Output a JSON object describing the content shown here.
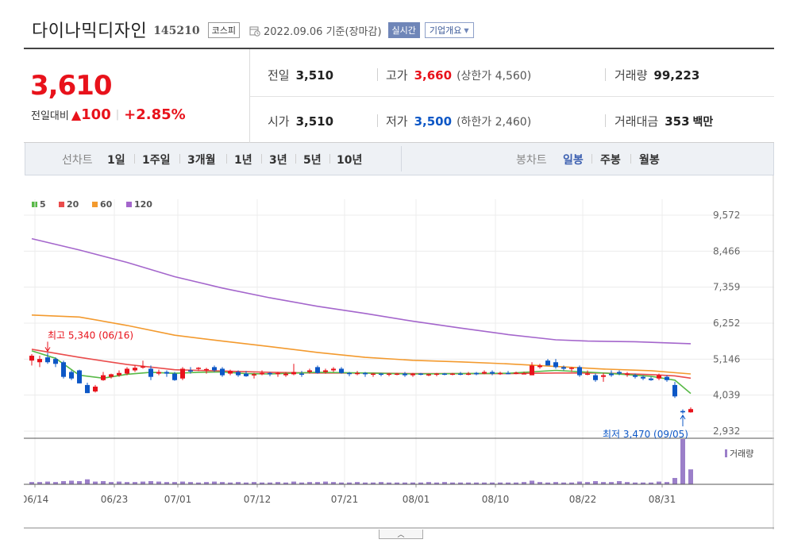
{
  "header": {
    "stock_name": "다이나믹디자인",
    "stock_code": "145210",
    "market": "코스피",
    "date_text": "2022.09.06 기준(장마감)",
    "realtime_label": "실시간",
    "company_label": "기업개요"
  },
  "quote": {
    "price": "3,610",
    "change_label": "전일대비",
    "change_abs": "100",
    "change_pct": "+2.85%",
    "prev_label": "전일",
    "prev_value": "3,510",
    "open_label": "시가",
    "open_value": "3,510",
    "high_label": "고가",
    "high_value": "3,660",
    "upper_limit": "(상한가 4,560)",
    "low_label": "저가",
    "low_value": "3,500",
    "lower_limit": "(하한가 2,460)",
    "volume_label": "거래량",
    "volume_value": "99,223",
    "amount_label": "거래대금",
    "amount_value": "353",
    "amount_unit": "백만"
  },
  "period_bar": {
    "line_label": "선차트",
    "line_options": [
      "1일",
      "1주일",
      "3개월",
      "1년",
      "3년",
      "5년",
      "10년"
    ],
    "candle_label": "봉차트",
    "candle_options": [
      "일봉",
      "주봉",
      "월봉"
    ],
    "candle_active": "일봉"
  },
  "colors": {
    "up": "#e8121b",
    "down": "#0d57c6",
    "ma5": "#58b947",
    "ma20": "#ea4c4c",
    "ma60": "#f39a2e",
    "ma120": "#a466cc",
    "volume": "#9b7fc9"
  },
  "chart_data": {
    "type": "candlestick",
    "ylim": [
      2932,
      9572
    ],
    "y_ticks": [
      "9,572",
      "8,466",
      "7,359",
      "6,252",
      "5,146",
      "4,039",
      "2,932"
    ],
    "x_tick_labels": [
      "06/14",
      "06/23",
      "07/01",
      "07/12",
      "07/21",
      "08/01",
      "08/10",
      "08/22",
      "08/31"
    ],
    "legend": [
      "5",
      "20",
      "60",
      "120"
    ],
    "volume_label": "거래량",
    "annotations": {
      "high_text": "최고 5,340 (06/16)",
      "low_text": "최저 3,470 (09/05)"
    },
    "candles": [
      [
        5100,
        5300,
        4950,
        5250
      ],
      [
        5050,
        5250,
        4900,
        5150
      ],
      [
        5200,
        5340,
        5000,
        5050
      ],
      [
        5150,
        5200,
        4900,
        5000
      ],
      [
        5050,
        5100,
        4550,
        4600
      ],
      [
        4750,
        4800,
        4500,
        4550
      ],
      [
        4800,
        4820,
        4400,
        4400
      ],
      [
        4350,
        4420,
        4100,
        4100
      ],
      [
        4150,
        4350,
        4120,
        4300
      ],
      [
        4500,
        4750,
        4480,
        4650
      ],
      [
        4600,
        4700,
        4550,
        4680
      ],
      [
        4650,
        4800,
        4600,
        4720
      ],
      [
        4700,
        4900,
        4650,
        4850
      ],
      [
        4800,
        4950,
        4750,
        4880
      ],
      [
        4900,
        5100,
        4850,
        4920
      ],
      [
        4850,
        4950,
        4500,
        4600
      ],
      [
        4700,
        4820,
        4650,
        4750
      ],
      [
        4750,
        4800,
        4600,
        4700
      ],
      [
        4700,
        4750,
        4480,
        4500
      ],
      [
        4550,
        4900,
        4500,
        4850
      ],
      [
        4800,
        4900,
        4700,
        4780
      ],
      [
        4850,
        4900,
        4780,
        4880
      ],
      [
        4800,
        4880,
        4700,
        4840
      ],
      [
        4900,
        4950,
        4750,
        4800
      ],
      [
        4850,
        4900,
        4600,
        4650
      ],
      [
        4700,
        4820,
        4650,
        4780
      ],
      [
        4750,
        4800,
        4600,
        4650
      ],
      [
        4700,
        4780,
        4600,
        4620
      ],
      [
        4650,
        4720,
        4550,
        4680
      ],
      [
        4680,
        4800,
        4650,
        4720
      ],
      [
        4720,
        4750,
        4620,
        4680
      ],
      [
        4700,
        4750,
        4600,
        4720
      ],
      [
        4650,
        4750,
        4600,
        4700
      ],
      [
        4680,
        5000,
        4650,
        4750
      ],
      [
        4700,
        4780,
        4600,
        4680
      ],
      [
        4750,
        4850,
        4700,
        4800
      ],
      [
        4900,
        4950,
        4700,
        4720
      ],
      [
        4750,
        4850,
        4700,
        4800
      ],
      [
        4800,
        4900,
        4750,
        4850
      ],
      [
        4850,
        4900,
        4700,
        4720
      ],
      [
        4720,
        4750,
        4620,
        4700
      ],
      [
        4700,
        4780,
        4650,
        4720
      ],
      [
        4720,
        4750,
        4600,
        4680
      ],
      [
        4680,
        4720,
        4600,
        4700
      ],
      [
        4700,
        4720,
        4620,
        4680
      ],
      [
        4680,
        4720,
        4620,
        4700
      ],
      [
        4700,
        4720,
        4650,
        4700
      ],
      [
        4700,
        4750,
        4600,
        4650
      ],
      [
        4650,
        4720,
        4600,
        4700
      ],
      [
        4700,
        4720,
        4650,
        4680
      ],
      [
        4650,
        4700,
        4620,
        4680
      ],
      [
        4680,
        4720,
        4620,
        4700
      ],
      [
        4700,
        4720,
        4650,
        4680
      ],
      [
        4680,
        4720,
        4650,
        4700
      ],
      [
        4700,
        4750,
        4650,
        4680
      ],
      [
        4680,
        4750,
        4650,
        4700
      ],
      [
        4720,
        4750,
        4650,
        4680
      ],
      [
        4700,
        4800,
        4680,
        4750
      ],
      [
        4750,
        4800,
        4650,
        4700
      ],
      [
        4700,
        4760,
        4660,
        4720
      ],
      [
        4720,
        4780,
        4680,
        4700
      ],
      [
        4700,
        4760,
        4680,
        4730
      ],
      [
        4690,
        4760,
        4680,
        4710
      ],
      [
        4650,
        5050,
        4650,
        4950
      ],
      [
        4900,
        5000,
        4850,
        4950
      ],
      [
        5100,
        5150,
        4950,
        4950
      ],
      [
        5050,
        5150,
        4850,
        4900
      ],
      [
        4900,
        4950,
        4800,
        4850
      ],
      [
        4850,
        4900,
        4750,
        4880
      ],
      [
        4900,
        4950,
        4600,
        4650
      ],
      [
        4700,
        4800,
        4650,
        4700
      ],
      [
        4650,
        4700,
        4450,
        4500
      ],
      [
        4600,
        4720,
        4450,
        4650
      ],
      [
        4700,
        4800,
        4600,
        4650
      ],
      [
        4750,
        4800,
        4650,
        4700
      ],
      [
        4700,
        4750,
        4600,
        4700
      ],
      [
        4650,
        4700,
        4550,
        4600
      ],
      [
        4600,
        4650,
        4500,
        4550
      ],
      [
        4550,
        4600,
        4480,
        4500
      ],
      [
        4550,
        4700,
        4500,
        4650
      ],
      [
        4600,
        4650,
        4450,
        4500
      ],
      [
        4350,
        4450,
        3950,
        4000
      ],
      [
        3550,
        3600,
        3470,
        3510
      ],
      [
        3510,
        3660,
        3500,
        3610
      ]
    ],
    "volume_relative": [
      0.05,
      0.05,
      0.06,
      0.05,
      0.07,
      0.08,
      0.07,
      0.11,
      0.06,
      0.07,
      0.05,
      0.06,
      0.05,
      0.05,
      0.06,
      0.07,
      0.06,
      0.05,
      0.05,
      0.06,
      0.05,
      0.04,
      0.05,
      0.06,
      0.05,
      0.04,
      0.05,
      0.04,
      0.05,
      0.04,
      0.04,
      0.05,
      0.04,
      0.06,
      0.04,
      0.05,
      0.05,
      0.06,
      0.05,
      0.04,
      0.04,
      0.05,
      0.04,
      0.04,
      0.05,
      0.04,
      0.04,
      0.04,
      0.04,
      0.04,
      0.05,
      0.04,
      0.05,
      0.04,
      0.04,
      0.04,
      0.04,
      0.04,
      0.04,
      0.04,
      0.04,
      0.04,
      0.05,
      0.08,
      0.05,
      0.04,
      0.05,
      0.04,
      0.04,
      0.06,
      0.05,
      0.07,
      0.05,
      0.05,
      0.07,
      0.05,
      0.04,
      0.04,
      0.04,
      0.06,
      0.05,
      0.14,
      1.0,
      0.33
    ],
    "ma5": [
      [
        0,
        5400
      ],
      [
        3,
        5170
      ],
      [
        6,
        4650
      ],
      [
        9,
        4560
      ],
      [
        12,
        4680
      ],
      [
        15,
        4740
      ],
      [
        18,
        4710
      ],
      [
        21,
        4740
      ],
      [
        24,
        4750
      ],
      [
        27,
        4700
      ],
      [
        30,
        4690
      ],
      [
        36,
        4740
      ],
      [
        42,
        4720
      ],
      [
        48,
        4690
      ],
      [
        54,
        4700
      ],
      [
        60,
        4710
      ],
      [
        66,
        4800
      ],
      [
        72,
        4720
      ],
      [
        78,
        4620
      ],
      [
        81,
        4500
      ],
      [
        83,
        4090
      ]
    ],
    "ma20": [
      [
        0,
        5450
      ],
      [
        6,
        5200
      ],
      [
        12,
        4980
      ],
      [
        18,
        4820
      ],
      [
        24,
        4780
      ],
      [
        30,
        4740
      ],
      [
        36,
        4720
      ],
      [
        42,
        4720
      ],
      [
        48,
        4700
      ],
      [
        54,
        4700
      ],
      [
        60,
        4700
      ],
      [
        66,
        4720
      ],
      [
        72,
        4720
      ],
      [
        78,
        4670
      ],
      [
        81,
        4630
      ],
      [
        83,
        4560
      ]
    ],
    "ma60": [
      [
        0,
        6500
      ],
      [
        6,
        6440
      ],
      [
        12,
        6180
      ],
      [
        18,
        5880
      ],
      [
        24,
        5700
      ],
      [
        30,
        5530
      ],
      [
        36,
        5350
      ],
      [
        42,
        5200
      ],
      [
        48,
        5110
      ],
      [
        54,
        5060
      ],
      [
        60,
        5000
      ],
      [
        66,
        4920
      ],
      [
        72,
        4840
      ],
      [
        78,
        4790
      ],
      [
        83,
        4690
      ]
    ],
    "ma120": [
      [
        0,
        8850
      ],
      [
        6,
        8500
      ],
      [
        12,
        8120
      ],
      [
        18,
        7680
      ],
      [
        24,
        7330
      ],
      [
        30,
        7030
      ],
      [
        36,
        6770
      ],
      [
        42,
        6550
      ],
      [
        48,
        6310
      ],
      [
        54,
        6100
      ],
      [
        60,
        5900
      ],
      [
        66,
        5740
      ],
      [
        70,
        5700
      ],
      [
        76,
        5680
      ],
      [
        83,
        5620
      ]
    ]
  }
}
